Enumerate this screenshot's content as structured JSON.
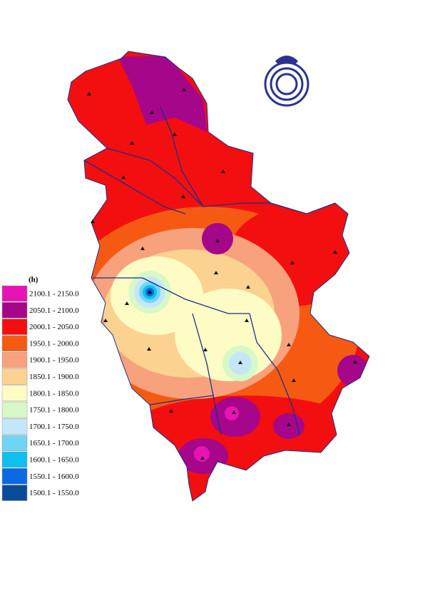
{
  "legend": {
    "title": "(h)",
    "items": [
      {
        "label": "2100.1 - 2150.0",
        "color": "#e813b4"
      },
      {
        "label": "2050.1 - 2100.0",
        "color": "#a5068a"
      },
      {
        "label": "2000.1 - 2050.0",
        "color": "#f30f0f"
      },
      {
        "label": "1950.1 - 2000.0",
        "color": "#f65a12"
      },
      {
        "label": "1900.1 - 1950.0",
        "color": "#f8a27d"
      },
      {
        "label": "1850.1 - 1900.0",
        "color": "#fbd28f"
      },
      {
        "label": "1800.1 - 1850.0",
        "color": "#fdfcc5"
      },
      {
        "label": "1750.1 - 1800.0",
        "color": "#d8f8c7"
      },
      {
        "label": "1700.1 - 1750.0",
        "color": "#c4e6f9"
      },
      {
        "label": "1650.1 - 1700.0",
        "color": "#6ed6f4"
      },
      {
        "label": "1600.1 - 1650.0",
        "color": "#0ec0ee"
      },
      {
        "label": "1550.1 - 1600.0",
        "color": "#0b6ae3"
      },
      {
        "label": "1500.1 - 1550.0",
        "color": "#0b4c9a"
      }
    ]
  }
}
